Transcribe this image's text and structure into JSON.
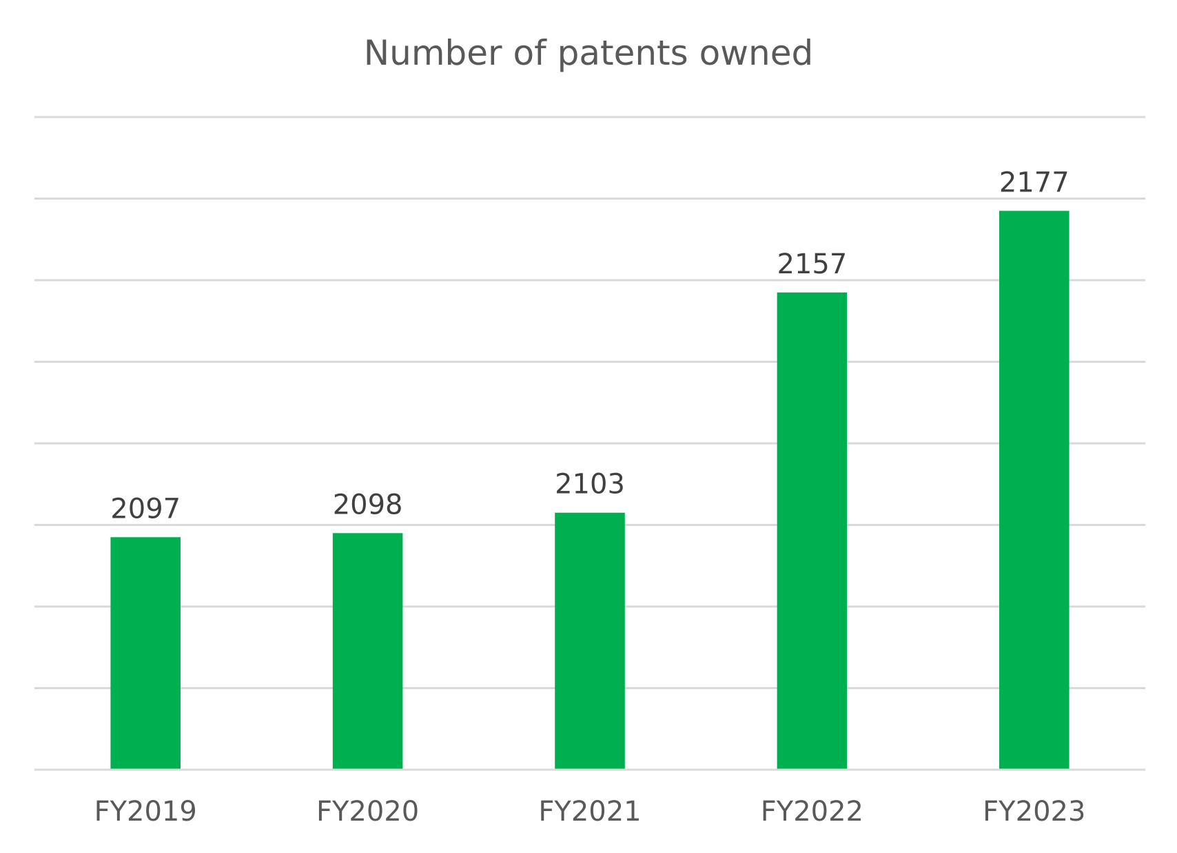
{
  "chart_data": {
    "type": "bar",
    "title": "Number of patents owned",
    "categories": [
      "FY2019",
      "FY2020",
      "FY2021",
      "FY2022",
      "FY2023"
    ],
    "values": [
      2097,
      2098,
      2103,
      2157,
      2177
    ],
    "data_labels": [
      "2097",
      "2098",
      "2103",
      "2157",
      "2177"
    ],
    "xlabel": "",
    "ylabel": "",
    "ylim": [
      2040,
      2200
    ],
    "grid_step": 20,
    "grid": true,
    "y_tick_labels_visible": false,
    "legend": "none",
    "bar_color": "#00AF50",
    "grid_color": "#D9D9D9"
  }
}
